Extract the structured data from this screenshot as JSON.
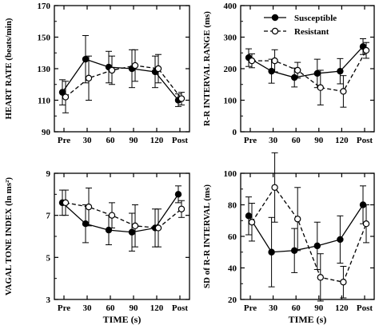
{
  "figure": {
    "x_categories": [
      "Pre",
      "30",
      "60",
      "90",
      "120",
      "Post"
    ],
    "xlabel": "TIME (s)",
    "legend": [
      {
        "name": "Susceptible",
        "marker": "filled-circle",
        "line": "solid"
      },
      {
        "name": "Resistant",
        "marker": "open-circle",
        "line": "dashed"
      }
    ]
  },
  "chart_data": [
    {
      "type": "line",
      "ylabel": "HEART RATE (beats/min)",
      "xlabel": "",
      "categories": [
        "Pre",
        "30",
        "60",
        "90",
        "120",
        "Post"
      ],
      "ylim": [
        90,
        170
      ],
      "yticks": [
        "90",
        "110",
        "130",
        "150",
        "170"
      ],
      "series": [
        {
          "name": "Susceptible",
          "values": [
            115,
            136,
            131,
            130,
            128,
            110
          ],
          "err": [
            8,
            15,
            10,
            12,
            10,
            4
          ]
        },
        {
          "name": "Resistant",
          "values": [
            112,
            124,
            129,
            132,
            130,
            111
          ],
          "err": [
            10,
            14,
            9,
            10,
            9,
            4
          ]
        }
      ]
    },
    {
      "type": "line",
      "ylabel": "R-R INTERVAL RANGE (ms)",
      "xlabel": "",
      "categories": [
        "Pre",
        "30",
        "60",
        "90",
        "120",
        "Post"
      ],
      "ylim": [
        0,
        400
      ],
      "yticks": [
        "0",
        "100",
        "200",
        "300",
        "400"
      ],
      "legend_position": "top-right",
      "series": [
        {
          "name": "Susceptible",
          "values": [
            235,
            192,
            172,
            185,
            192,
            270
          ],
          "err": [
            28,
            38,
            30,
            45,
            40,
            25
          ]
        },
        {
          "name": "Resistant",
          "values": [
            225,
            225,
            195,
            140,
            128,
            258
          ],
          "err": [
            22,
            35,
            25,
            55,
            50,
            25
          ]
        }
      ]
    },
    {
      "type": "line",
      "ylabel": "VAGAL TONE INDEX (ln ms²)",
      "xlabel": "TIME (s)",
      "categories": [
        "Pre",
        "30",
        "60",
        "90",
        "120",
        "Post"
      ],
      "ylim": [
        3,
        9
      ],
      "yticks": [
        "3",
        "5",
        "7",
        "9"
      ],
      "series": [
        {
          "name": "Susceptible",
          "values": [
            7.6,
            6.6,
            6.3,
            6.2,
            6.4,
            8.0
          ],
          "err": [
            0.6,
            0.9,
            0.7,
            0.9,
            0.9,
            0.4
          ]
        },
        {
          "name": "Resistant",
          "values": [
            7.6,
            7.4,
            7.0,
            6.5,
            6.4,
            7.3
          ],
          "err": [
            0.6,
            0.9,
            0.6,
            1.0,
            0.9,
            0.4
          ]
        }
      ]
    },
    {
      "type": "line",
      "ylabel": "SD of R-R INTERVAL (ms)",
      "xlabel": "TIME (s)",
      "categories": [
        "Pre",
        "30",
        "60",
        "90",
        "120",
        "Post"
      ],
      "ylim": [
        20,
        100
      ],
      "yticks": [
        "20",
        "40",
        "60",
        "80",
        "100"
      ],
      "series": [
        {
          "name": "Susceptible",
          "values": [
            73,
            50,
            51,
            54,
            58,
            80
          ],
          "err": [
            12,
            22,
            14,
            15,
            15,
            12
          ]
        },
        {
          "name": "Resistant",
          "values": [
            69,
            91,
            71,
            34,
            31,
            68
          ],
          "err": [
            12,
            22,
            20,
            15,
            10,
            12
          ]
        }
      ]
    }
  ]
}
